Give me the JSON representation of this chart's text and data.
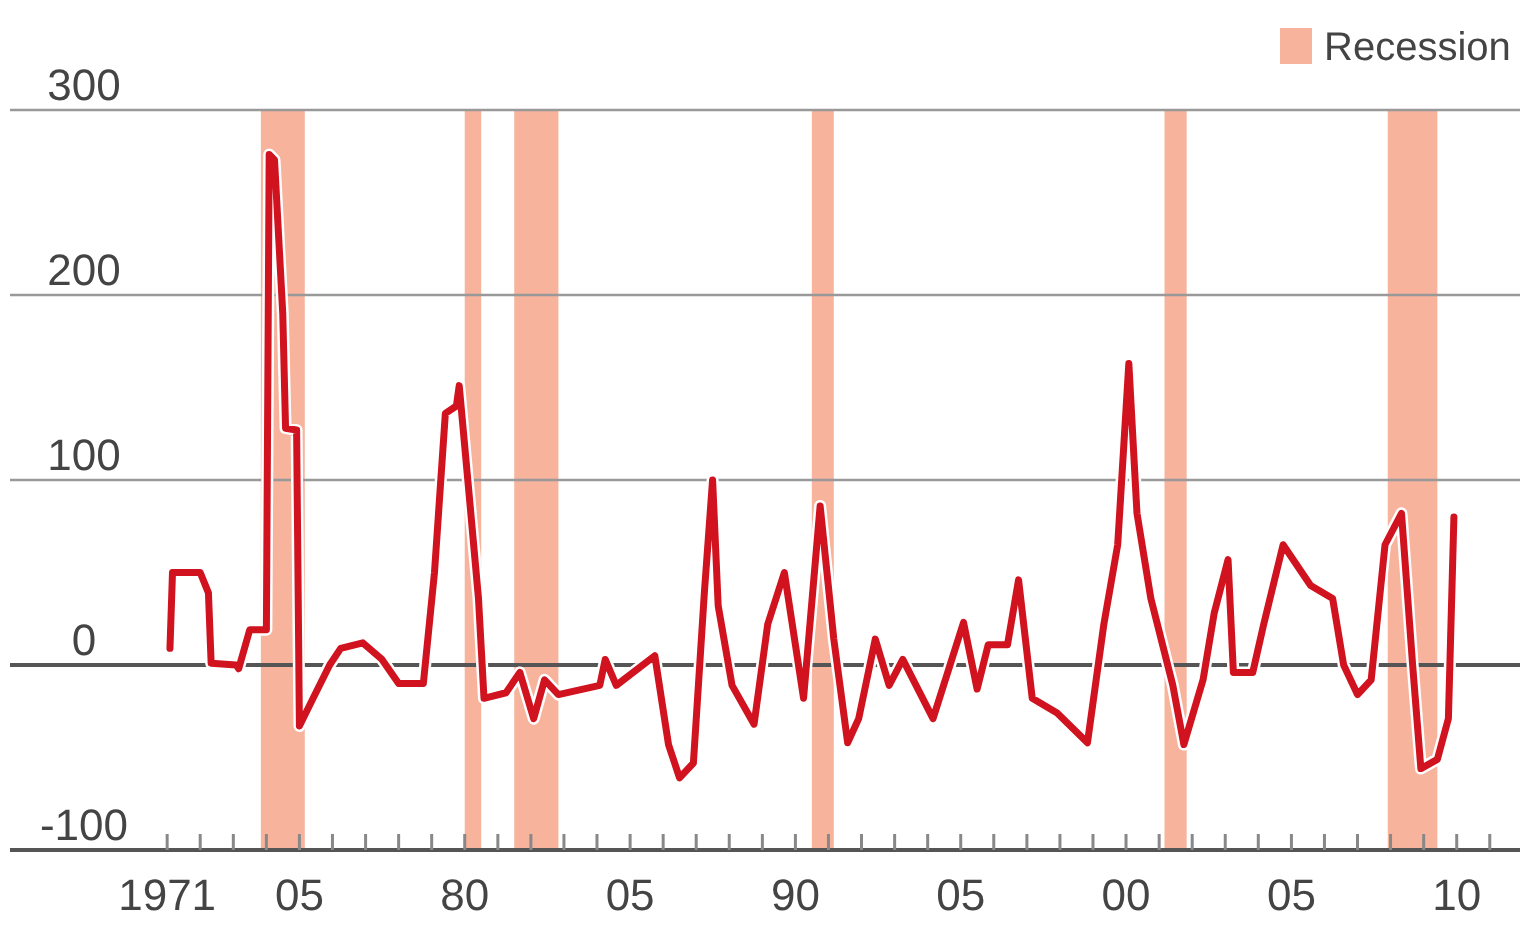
{
  "chart_data": {
    "type": "line",
    "legend": "top right",
    "grid": "y",
    "line_style": "solid",
    "marker": "none",
    "xlim": [
      "1966-04",
      "2011-12"
    ],
    "ylim": [
      -100,
      300
    ],
    "yticks": [
      -100,
      0,
      100,
      200,
      300
    ],
    "xticks": [
      {
        "value": "1971",
        "label": "1971"
      },
      {
        "value": "1975",
        "label": "05"
      },
      {
        "value": "1980",
        "label": "80"
      },
      {
        "value": "1985",
        "label": "05"
      },
      {
        "value": "1990",
        "label": "90"
      },
      {
        "value": "1995",
        "label": "05"
      },
      {
        "value": "2000",
        "label": "00"
      },
      {
        "value": "2005",
        "label": "05"
      },
      {
        "value": "2010",
        "label": "10"
      },
      {
        "value": "1972",
        "label": null
      },
      {
        "value": "1973",
        "label": null
      },
      {
        "value": "1974",
        "label": null
      },
      {
        "value": "1976",
        "label": null
      },
      {
        "value": "1977",
        "label": null
      },
      {
        "value": "1978",
        "label": null
      },
      {
        "value": "1979",
        "label": null
      },
      {
        "value": "1981",
        "label": null
      },
      {
        "value": "1982",
        "label": null
      },
      {
        "value": "1983",
        "label": null
      },
      {
        "value": "1984",
        "label": null
      },
      {
        "value": "1986",
        "label": null
      },
      {
        "value": "1987",
        "label": null
      },
      {
        "value": "1988",
        "label": null
      },
      {
        "value": "1989",
        "label": null
      },
      {
        "value": "1991",
        "label": null
      },
      {
        "value": "1992",
        "label": null
      },
      {
        "value": "1993",
        "label": null
      },
      {
        "value": "1994",
        "label": null
      },
      {
        "value": "1996",
        "label": null
      },
      {
        "value": "1997",
        "label": null
      },
      {
        "value": "1998",
        "label": null
      },
      {
        "value": "1999",
        "label": null
      },
      {
        "value": "2001",
        "label": null
      },
      {
        "value": "2002",
        "label": null
      },
      {
        "value": "2003",
        "label": null
      },
      {
        "value": "2004",
        "label": null
      },
      {
        "value": "2006",
        "label": null
      },
      {
        "value": "2007",
        "label": null
      },
      {
        "value": "2008",
        "label": null
      },
      {
        "value": "2009",
        "label": null
      },
      {
        "value": "2011",
        "label": null
      }
    ],
    "bands": [
      {
        "axis": "x",
        "from": "1973-11",
        "to": "1975-03",
        "label": "Recession",
        "color": "#f7b39c"
      },
      {
        "axis": "x",
        "from": "1980-01",
        "to": "1980-07",
        "color": "#f7b39c"
      },
      {
        "axis": "x",
        "from": "1981-07",
        "to": "1982-11",
        "color": "#f7b39c"
      },
      {
        "axis": "x",
        "from": "1990-07",
        "to": "1991-03",
        "color": "#f7b39c"
      },
      {
        "axis": "x",
        "from": "2001-03",
        "to": "2001-11",
        "color": "#f7b39c"
      },
      {
        "axis": "x",
        "from": "2007-12",
        "to": "2009-06",
        "color": "#f7b39c"
      }
    ],
    "series": [
      {
        "color": "#d0131f",
        "x": [
          "1971-02",
          "1971-03",
          "1972-01",
          "1972-04",
          "1972-05",
          "1973-02",
          "1973-03",
          "1973-07",
          "1974-01",
          "1974-02",
          "1974-04",
          "1974-07",
          "1974-08",
          "1974-12",
          "1975-01",
          "1975-06",
          "1975-12",
          "1976-04",
          "1976-12",
          "1977-07",
          "1978-01",
          "1978-10",
          "1979-02",
          "1979-06",
          "1979-10",
          "1979-11",
          "1980-03",
          "1980-06",
          "1980-08",
          "1981-04",
          "1981-09",
          "1982-02",
          "1982-06",
          "1982-11",
          "1984-02",
          "1984-04",
          "1984-08",
          "1985-10",
          "1986-03",
          "1986-07",
          "1986-12",
          "1987-04",
          "1987-07",
          "1987-09",
          "1988-02",
          "1988-10",
          "1989-03",
          "1989-09",
          "1990-04",
          "1990-10",
          "1991-03",
          "1991-08",
          "1991-12",
          "1992-06",
          "1992-11",
          "1993-04",
          "1994-03",
          "1995-02",
          "1995-07",
          "1995-11",
          "1996-06",
          "1996-10",
          "1997-03",
          "1997-12",
          "1998-11",
          "1999-05",
          "1999-10",
          "2000-02",
          "2000-05",
          "2000-10",
          "2001-06",
          "2001-10",
          "2002-05",
          "2002-09",
          "2003-02",
          "2003-04",
          "2003-11",
          "2004-03",
          "2004-10",
          "2005-08",
          "2006-04",
          "2006-08",
          "2007-01",
          "2007-06",
          "2007-11",
          "2008-05",
          "2008-09",
          "2008-12",
          "2009-06",
          "2009-10",
          "2009-12"
        ],
        "values": [
          9,
          50,
          50,
          39,
          1,
          0,
          -2,
          19,
          19,
          276,
          273,
          190,
          128,
          127,
          -33,
          -18,
          0,
          9,
          12,
          3,
          -10,
          -10,
          50,
          136,
          140,
          151,
          86,
          36,
          -18,
          -15,
          -4,
          -29,
          -8,
          -16,
          -11,
          3,
          -11,
          5,
          -43,
          -61,
          -53,
          39,
          100,
          32,
          -11,
          -32,
          22,
          50,
          -18,
          86,
          14,
          -42,
          -29,
          14,
          -11,
          3,
          -29,
          23,
          -13,
          11,
          11,
          46,
          -18,
          -26,
          -42,
          22,
          65,
          163,
          82,
          36,
          -11,
          -43,
          -8,
          28,
          57,
          -4,
          -4,
          22,
          65,
          43,
          36,
          0,
          -16,
          -8,
          65,
          82,
          0,
          -56,
          -51,
          -29,
          80
        ]
      }
    ]
  }
}
